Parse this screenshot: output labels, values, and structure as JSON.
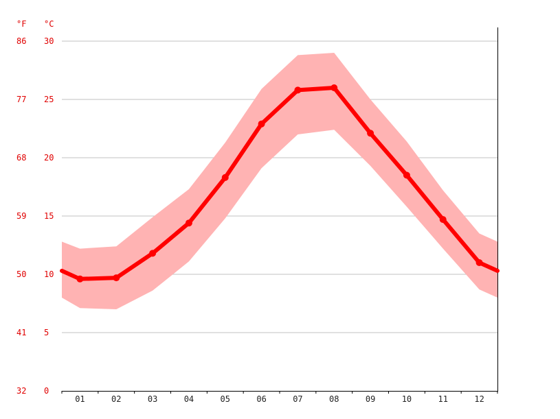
{
  "chart_data": {
    "type": "line",
    "unit_labels": {
      "fahrenheit": "°F",
      "celsius": "°C"
    },
    "y_ticks_celsius": [
      "0",
      "5",
      "10",
      "15",
      "20",
      "25",
      "30"
    ],
    "y_ticks_fahrenheit": [
      "32",
      "41",
      "50",
      "59",
      "68",
      "77",
      "86"
    ],
    "ylim": [
      0,
      30
    ],
    "categories": [
      "01",
      "02",
      "03",
      "04",
      "05",
      "06",
      "07",
      "08",
      "09",
      "10",
      "11",
      "12"
    ],
    "series": [
      {
        "values": [
          9.6,
          9.7,
          11.8,
          14.4,
          18.3,
          22.9,
          25.8,
          26.0,
          22.1,
          18.5,
          14.7,
          11.0
        ]
      }
    ],
    "range_band": {
      "upper": [
        12.2,
        12.4,
        14.9,
        17.3,
        21.3,
        25.9,
        28.8,
        29.0,
        25.0,
        21.4,
        17.2,
        13.5
      ],
      "lower": [
        7.1,
        7.0,
        8.6,
        11.1,
        14.8,
        19.1,
        22.0,
        22.4,
        19.3,
        15.8,
        12.2,
        8.7
      ]
    },
    "edge_values": {
      "start": 10.3,
      "end": 10.3,
      "upper_start": 12.8,
      "upper_end": 12.8,
      "lower_start": 8.0,
      "lower_end": 8.0
    },
    "grid": true,
    "colors": {
      "line": "#ff0000",
      "band": "#ffb3b3",
      "grid": "#c0c0c0",
      "axis": "#000000",
      "tick_label": "#e00000"
    }
  }
}
